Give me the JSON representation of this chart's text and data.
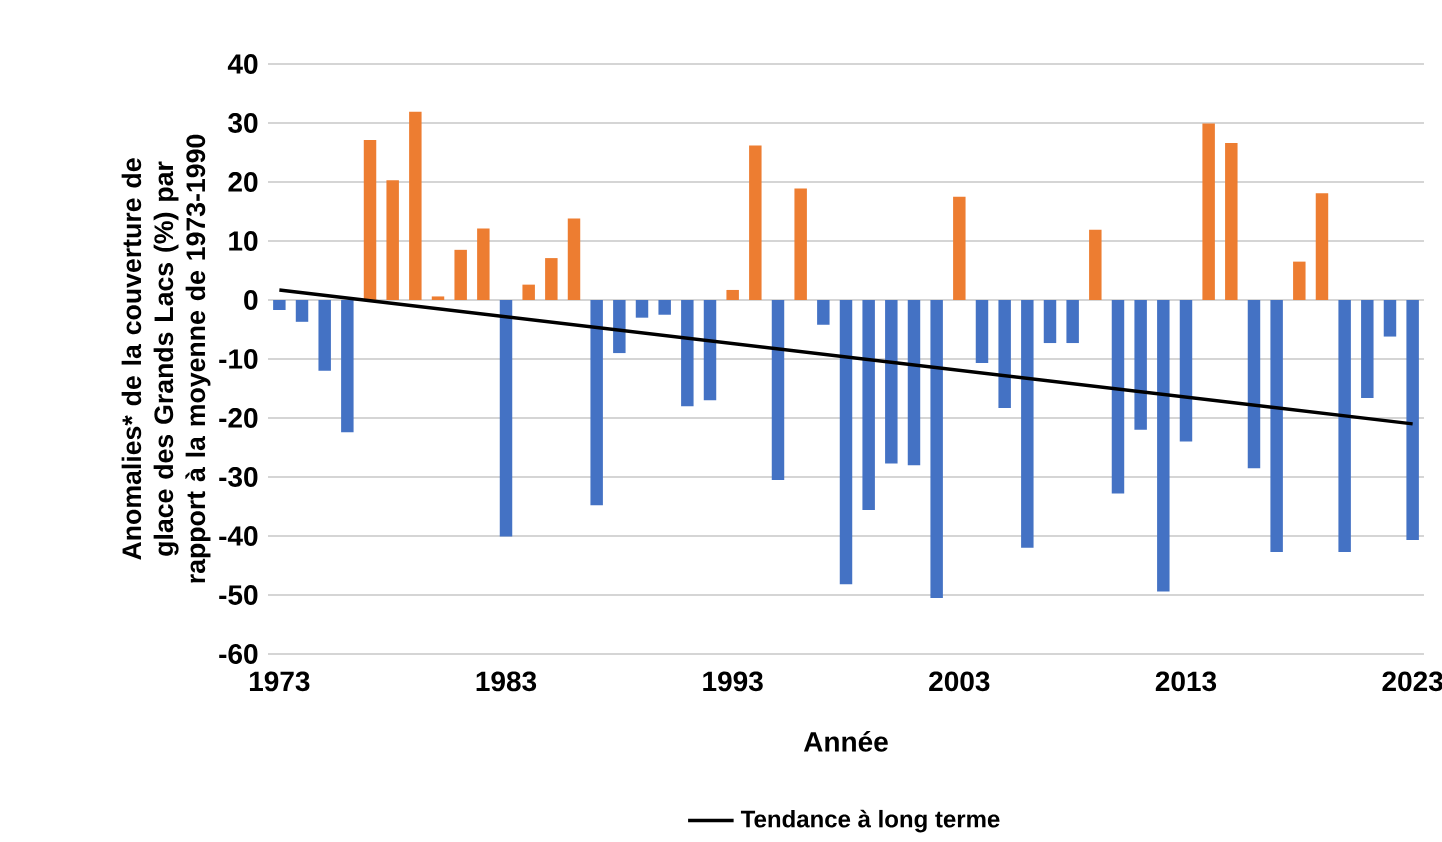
{
  "chart_data": {
    "type": "bar",
    "xlabel": "Année",
    "ylabel": "Anomalies* de la couverture de glace des Grands Lacs (%) par rapport à la moyenne de 1973-1990",
    "x": [
      1973,
      1974,
      1975,
      1976,
      1977,
      1978,
      1979,
      1980,
      1981,
      1982,
      1983,
      1984,
      1985,
      1986,
      1987,
      1988,
      1989,
      1990,
      1991,
      1992,
      1993,
      1994,
      1995,
      1996,
      1997,
      1998,
      1999,
      2000,
      2001,
      2002,
      2003,
      2004,
      2005,
      2006,
      2007,
      2008,
      2009,
      2010,
      2011,
      2012,
      2013,
      2014,
      2015,
      2016,
      2017,
      2018,
      2019,
      2020,
      2021,
      2022,
      2023
    ],
    "xlim": [
      1972.5,
      2023.5
    ],
    "xticks": [
      1973,
      1983,
      1993,
      2003,
      2013,
      2023
    ],
    "ylim": [
      -60,
      40
    ],
    "yticks": [
      -60,
      -50,
      -40,
      -30,
      -20,
      -10,
      0,
      10,
      20,
      30,
      40
    ],
    "grid": "y",
    "legend": "bottom",
    "series": [
      {
        "values": [
          -1.7,
          -3.7,
          -12,
          -22.4,
          27.1,
          20.3,
          31.9,
          0.6,
          8.5,
          12.1,
          -40.1,
          2.6,
          7.1,
          13.8,
          -34.8,
          -9,
          -3,
          -2.5,
          -18,
          -17,
          1.7,
          26.2,
          -30.5,
          18.9,
          -4.2,
          -48.2,
          -35.6,
          -27.7,
          -28,
          -50.5,
          17.5,
          -10.7,
          -18.3,
          -42,
          -7.3,
          -7.3,
          11.9,
          -32.8,
          -22,
          -49.4,
          -24,
          29.9,
          26.6,
          -28.5,
          -42.7,
          6.5,
          18.1,
          -42.7,
          -16.6,
          -6.2,
          -40.7
        ],
        "colors": [
          "#4472c4",
          "#4472c4",
          "#4472c4",
          "#4472c4",
          "#ed7d31",
          "#ed7d31",
          "#ed7d31",
          "#ed7d31",
          "#ed7d31",
          "#ed7d31",
          "#4472c4",
          "#ed7d31",
          "#ed7d31",
          "#ed7d31",
          "#4472c4",
          "#4472c4",
          "#4472c4",
          "#4472c4",
          "#4472c4",
          "#4472c4",
          "#ed7d31",
          "#ed7d31",
          "#4472c4",
          "#ed7d31",
          "#4472c4",
          "#4472c4",
          "#4472c4",
          "#4472c4",
          "#4472c4",
          "#4472c4",
          "#ed7d31",
          "#4472c4",
          "#4472c4",
          "#4472c4",
          "#4472c4",
          "#4472c4",
          "#ed7d31",
          "#4472c4",
          "#4472c4",
          "#4472c4",
          "#4472c4",
          "#ed7d31",
          "#ed7d31",
          "#4472c4",
          "#4472c4",
          "#ed7d31",
          "#ed7d31",
          "#4472c4",
          "#4472c4",
          "#4472c4",
          "#4472c4"
        ]
      },
      {
        "type": "line",
        "name": "Tendance à long terme",
        "color": "#000000",
        "x": [
          1973,
          2023
        ],
        "values": [
          1.7,
          -21
        ]
      }
    ]
  }
}
